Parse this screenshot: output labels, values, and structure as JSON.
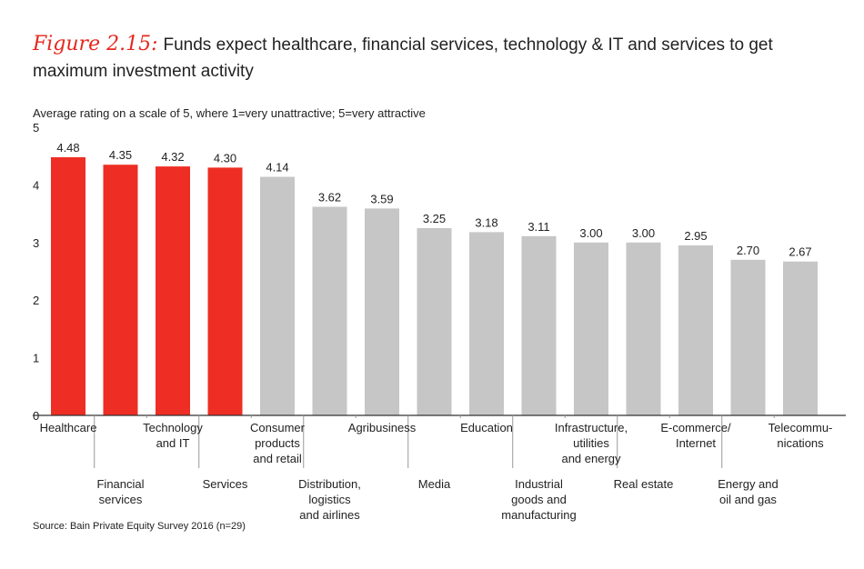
{
  "header": {
    "figure_label": "Figure 2.15:",
    "title": "Funds expect healthcare, financial services, technology & IT and services to get maximum investment activity"
  },
  "subtitle": "Average rating on a scale of 5, where 1=very unattractive; 5=very attractive",
  "source": "Source: Bain Private Equity Survey 2016 (n=29)",
  "colors": {
    "highlight": "#ee2e24",
    "base": "#c6c6c6"
  },
  "chart_data": {
    "type": "bar",
    "title": "Funds expect healthcare, financial services, technology & IT and services to get maximum investment activity",
    "ylabel": "Average rating on a scale of 5, where 1=very unattractive; 5=very attractive",
    "ylim": [
      0,
      5
    ],
    "yticks": [
      "0",
      "1",
      "2",
      "3",
      "4",
      "5"
    ],
    "grid": false,
    "categories": [
      [
        "Healthcare"
      ],
      [
        "Financial",
        "services"
      ],
      [
        "Technology",
        "and IT"
      ],
      [
        "Services"
      ],
      [
        "Consumer",
        "products",
        "and retail"
      ],
      [
        "Distribution,",
        "logistics",
        "and airlines"
      ],
      [
        "Agribusiness"
      ],
      [
        "Media"
      ],
      [
        "Education"
      ],
      [
        "Industrial",
        "goods and",
        "manufacturing"
      ],
      [
        "Infrastructure,",
        "utilities",
        "and energy"
      ],
      [
        "Real estate"
      ],
      [
        "E-commerce/",
        "Internet"
      ],
      [
        "Energy and",
        "oil and gas"
      ],
      [
        "Telecommu-",
        "nications"
      ]
    ],
    "values": [
      4.48,
      4.35,
      4.32,
      4.3,
      4.14,
      3.62,
      3.59,
      3.25,
      3.18,
      3.11,
      3.0,
      3.0,
      2.95,
      2.7,
      2.67
    ],
    "value_labels": [
      "4.48",
      "4.35",
      "4.32",
      "4.30",
      "4.14",
      "3.62",
      "3.59",
      "3.25",
      "3.18",
      "3.11",
      "3.00",
      "3.00",
      "2.95",
      "2.70",
      "2.67"
    ],
    "highlighted": [
      true,
      true,
      true,
      true,
      false,
      false,
      false,
      false,
      false,
      false,
      false,
      false,
      false,
      false,
      false
    ]
  }
}
